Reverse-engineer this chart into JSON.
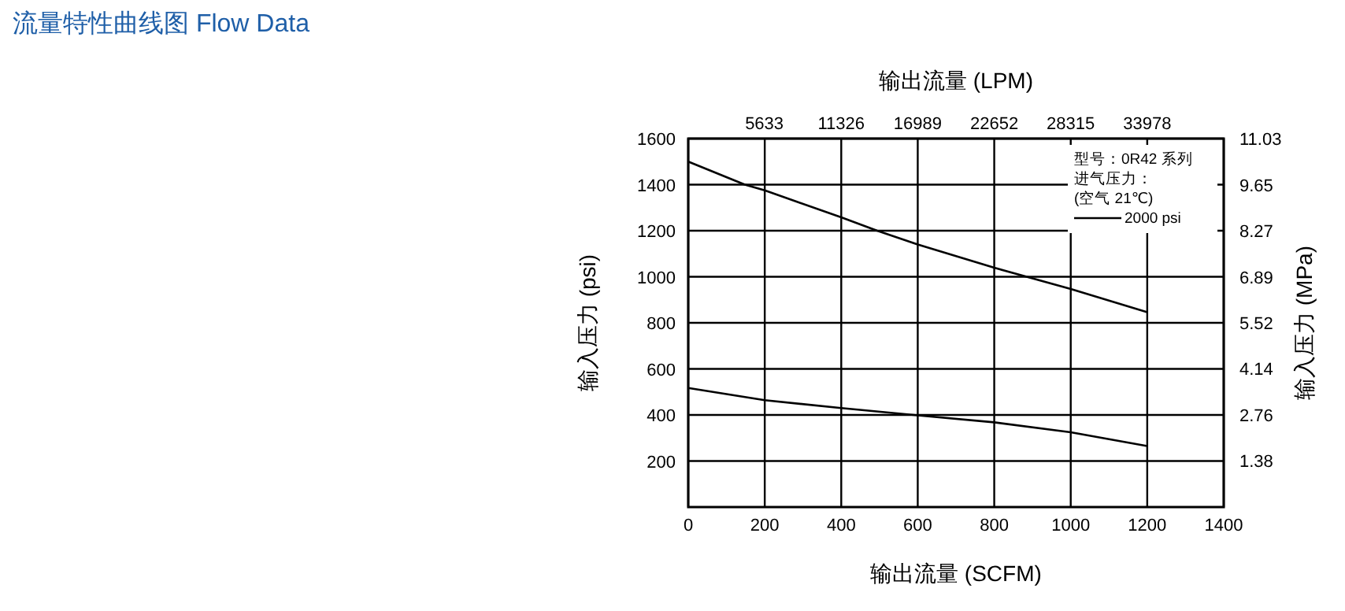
{
  "chart_data": {
    "type": "line",
    "title": "流量特性曲线图 Flow Data",
    "xlabel": "输出流量 (SCFM)",
    "x2label": "输出流量 (LPM)",
    "ylabel": "输入压力 (psi)",
    "y2label": "输入压力 (MPa)",
    "legend_title": [
      "型号：0R42 系列",
      "进气压力：",
      "(空气 21℃)"
    ],
    "x": [
      0,
      148,
      200,
      400,
      494,
      600,
      800,
      1000,
      1200
    ],
    "series": [
      {
        "name": "2000 psi",
        "color": "#000000",
        "values": [
          1500,
          1400,
          1375,
          1258,
          1200,
          1140,
          1039,
          947,
          846
        ]
      },
      {
        "color": "#000000",
        "x": [
          0,
          200,
          400,
          600,
          800,
          1000,
          1200
        ],
        "values": [
          517,
          464,
          430,
          398,
          368,
          325,
          265
        ]
      }
    ],
    "xlim": [
      0,
      1400
    ],
    "xticks": [
      0,
      200,
      400,
      600,
      800,
      1000,
      1200,
      1400
    ],
    "x2lim": [
      0,
      39641
    ],
    "x2ticks": [
      5633,
      11326,
      16989,
      22652,
      28315,
      33978
    ],
    "ylim": [
      0,
      1600
    ],
    "yticks": [
      200,
      400,
      600,
      800,
      1000,
      1200,
      1400,
      1600
    ],
    "y2lim": [
      0,
      11.03
    ],
    "y2ticks": [
      1.38,
      2.76,
      4.14,
      5.52,
      6.89,
      8.27,
      9.65,
      11.03
    ],
    "grid": true,
    "legend": "top right",
    "marker": "none",
    "line_style": "solid"
  }
}
